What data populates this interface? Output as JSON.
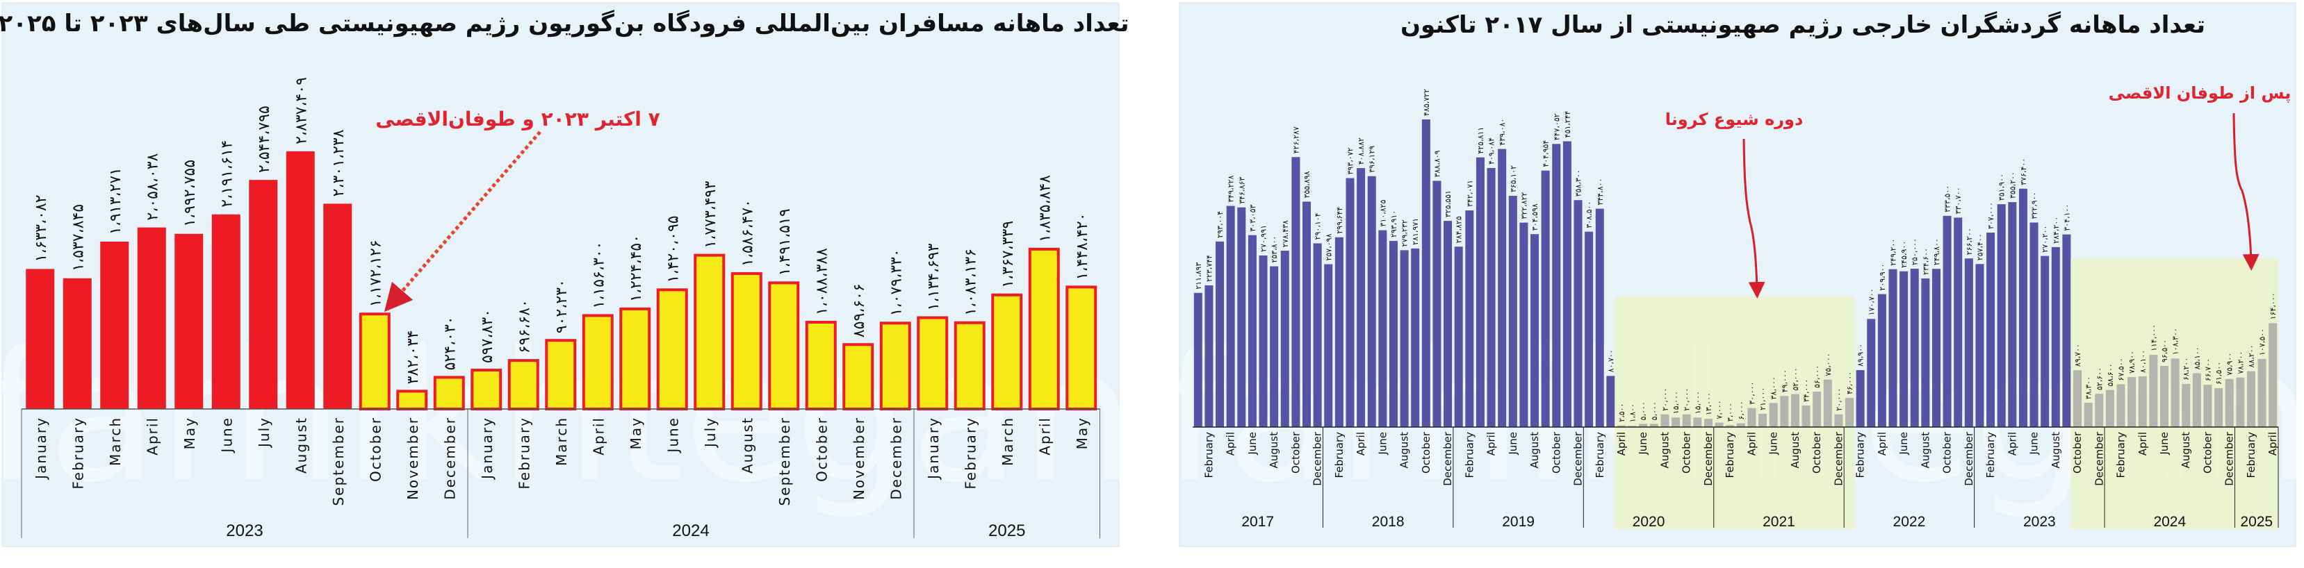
{
  "watermark": "farhikhtegan",
  "left_chart": {
    "title": "تعداد ماهانه مسافران بین‌المللی فرودگاه بن‌گوریون رژیم صهیونیستی طی سال‌های ۲۰۲۳ تا ۲۰۲۵",
    "annotation": "۷ اکتبر ۲۰۲۳ و طوفان‌الاقصی"
  },
  "right_chart": {
    "title": "تعداد ماهانه گردشگران خارجی رژیم صهیونیستی از سال ۲۰۱۷ تاکنون",
    "annotation_covid": "دوره شیوع کرونا",
    "annotation_after": "پس از طوفان الاقصی"
  },
  "chart_data": [
    {
      "type": "bar",
      "title": "تعداد ماهانه مسافران بین‌المللی فرودگاه بن‌گوریون رژیم صهیونیستی طی سال‌های ۲۰۲۳ تا ۲۰۲۵",
      "years": [
        {
          "label": "2023",
          "months": 12
        },
        {
          "label": "2024",
          "months": 12
        },
        {
          "label": "2025",
          "months": 5
        }
      ],
      "categories": [
        "January",
        "February",
        "March",
        "April",
        "May",
        "June",
        "July",
        "August",
        "September",
        "October",
        "November",
        "December",
        "January",
        "February",
        "March",
        "April",
        "May",
        "June",
        "July",
        "August",
        "September",
        "October",
        "November",
        "December",
        "January",
        "February",
        "March",
        "April",
        "May"
      ],
      "values": [
        1633082,
        1537845,
        1913271,
        2058038,
        1992755,
        2191614,
        2544795,
        2837409,
        2301238,
        1172126,
        382034,
        524030,
        597830,
        696680,
        902230,
        1156300,
        1224450,
        1420095,
        1773493,
        1586470,
        1491519,
        1088388,
        859606,
        1079330,
        1134693,
        1083136,
        1367339,
        1835848,
        1448420
      ],
      "ylim": [
        200000,
        2900000
      ],
      "grid": false,
      "colors": {
        "before": "#ed1c24",
        "after_fill": "#f6e916",
        "after_border": "#ed1c24"
      },
      "highlight_from_index": 9,
      "annotation": "۷ اکتبر ۲۰۲۳ و طوفان‌الاقصی"
    },
    {
      "type": "bar",
      "title": "تعداد ماهانه گردشگران خارجی رژیم صهیونیستی از سال ۲۰۱۷ تاکنون",
      "years": [
        {
          "label": "2017",
          "months": 12
        },
        {
          "label": "2018",
          "months": 12
        },
        {
          "label": "2019",
          "months": 12
        },
        {
          "label": "2020",
          "months": 12
        },
        {
          "label": "2021",
          "months": 12
        },
        {
          "label": "2022",
          "months": 12
        },
        {
          "label": "2023",
          "months": 12
        },
        {
          "label": "2024",
          "months": 12
        },
        {
          "label": "2025",
          "months": 4
        }
      ],
      "month_tick_labels": [
        "January",
        "February",
        "March",
        "April",
        "May",
        "June",
        "July",
        "August",
        "September",
        "October",
        "November",
        "December"
      ],
      "values": [
        211893,
        223744,
        293004,
        349228,
        346863,
        303053,
        270991,
        253800,
        278438,
        426287,
        355898,
        290104,
        257098,
        299644,
        393072,
        408882,
        396129,
        310825,
        293910,
        279232,
        281971,
        485722,
        388809,
        325551,
        284825,
        342071,
        425811,
        409084,
        439080,
        365102,
        322822,
        304598,
        404954,
        447052,
        451244,
        358300,
        308500,
        344800,
        80700,
        2500,
        1800,
        5000,
        5000,
        20000,
        15000,
        20000,
        15000,
        13000,
        7000,
        3000,
        6000,
        30000,
        21000,
        38000,
        49000,
        52000,
        34000,
        56000,
        75000,
        20000,
        46000,
        89900,
        170700,
        209900,
        249200,
        245900,
        250000,
        234600,
        249800,
        333500,
        330700,
        266200,
        257400,
        307000,
        351900,
        355200,
        376400,
        322900,
        270200,
        284200,
        304100,
        89700,
        38300,
        52600,
        58600,
        67500,
        78900,
        80100,
        114000,
        96500,
        108300,
        68200,
        85100,
        66700,
        61500,
        75900,
        78200,
        88200,
        107500,
        164000
      ],
      "ylim": [
        0,
        500000
      ],
      "grid": false,
      "colors": {
        "bar": "#5453a4",
        "highlight_band": "#eef0b4",
        "annotation": "#d71f2b"
      },
      "highlight_periods": [
        {
          "label": "دوره شیوع کرونا",
          "from": "2020-04",
          "to": "2022-01"
        },
        {
          "label": "پس از طوفان الاقصی",
          "from": "2023-10",
          "to": "2025-04"
        }
      ]
    }
  ]
}
